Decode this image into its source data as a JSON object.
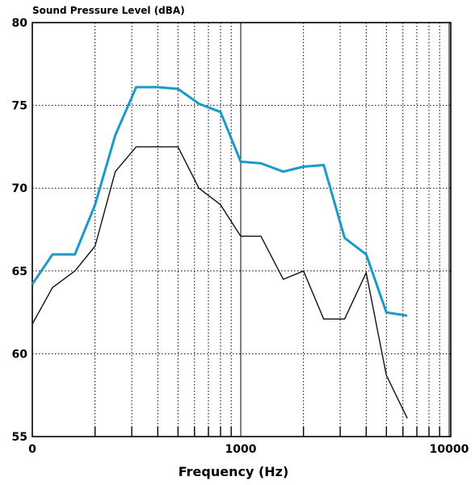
{
  "chart_data": {
    "type": "line",
    "title": "Sound Pressure Level (dBA)",
    "xlabel": "Frequency (Hz)",
    "ylabel": "",
    "x_scale": "log",
    "x_tick_labels": [
      "0",
      "1000",
      "10000"
    ],
    "y_ticks": [
      55,
      60,
      65,
      70,
      75,
      80
    ],
    "ylim": [
      55,
      80
    ],
    "grid": true,
    "series": [
      {
        "color": "#1a9acb",
        "x": [
          100,
          125,
          160,
          200,
          250,
          315,
          400,
          500,
          630,
          800,
          1000,
          1250,
          1600,
          2000,
          2500,
          3150,
          4000,
          5000,
          6300,
          8000
        ],
        "y": [
          64.2,
          66.0,
          66.0,
          69.0,
          73.2,
          76.1,
          76.1,
          76.0,
          75.1,
          74.6,
          71.6,
          71.5,
          71.0,
          71.3,
          71.4,
          67.0,
          66.0,
          62.5,
          62.3,
          null
        ]
      },
      {
        "color": "#111111",
        "x": [
          100,
          125,
          160,
          200,
          250,
          315,
          400,
          500,
          630,
          800,
          1000,
          1250,
          1600,
          2000,
          2500,
          3150,
          4000,
          5000,
          6300,
          8000
        ],
        "y": [
          61.8,
          64.0,
          65.0,
          66.5,
          71.0,
          72.5,
          72.5,
          72.5,
          70.0,
          69.0,
          67.1,
          67.1,
          64.5,
          65.0,
          62.1,
          62.1,
          64.9,
          58.7,
          56.1,
          null
        ]
      }
    ]
  }
}
